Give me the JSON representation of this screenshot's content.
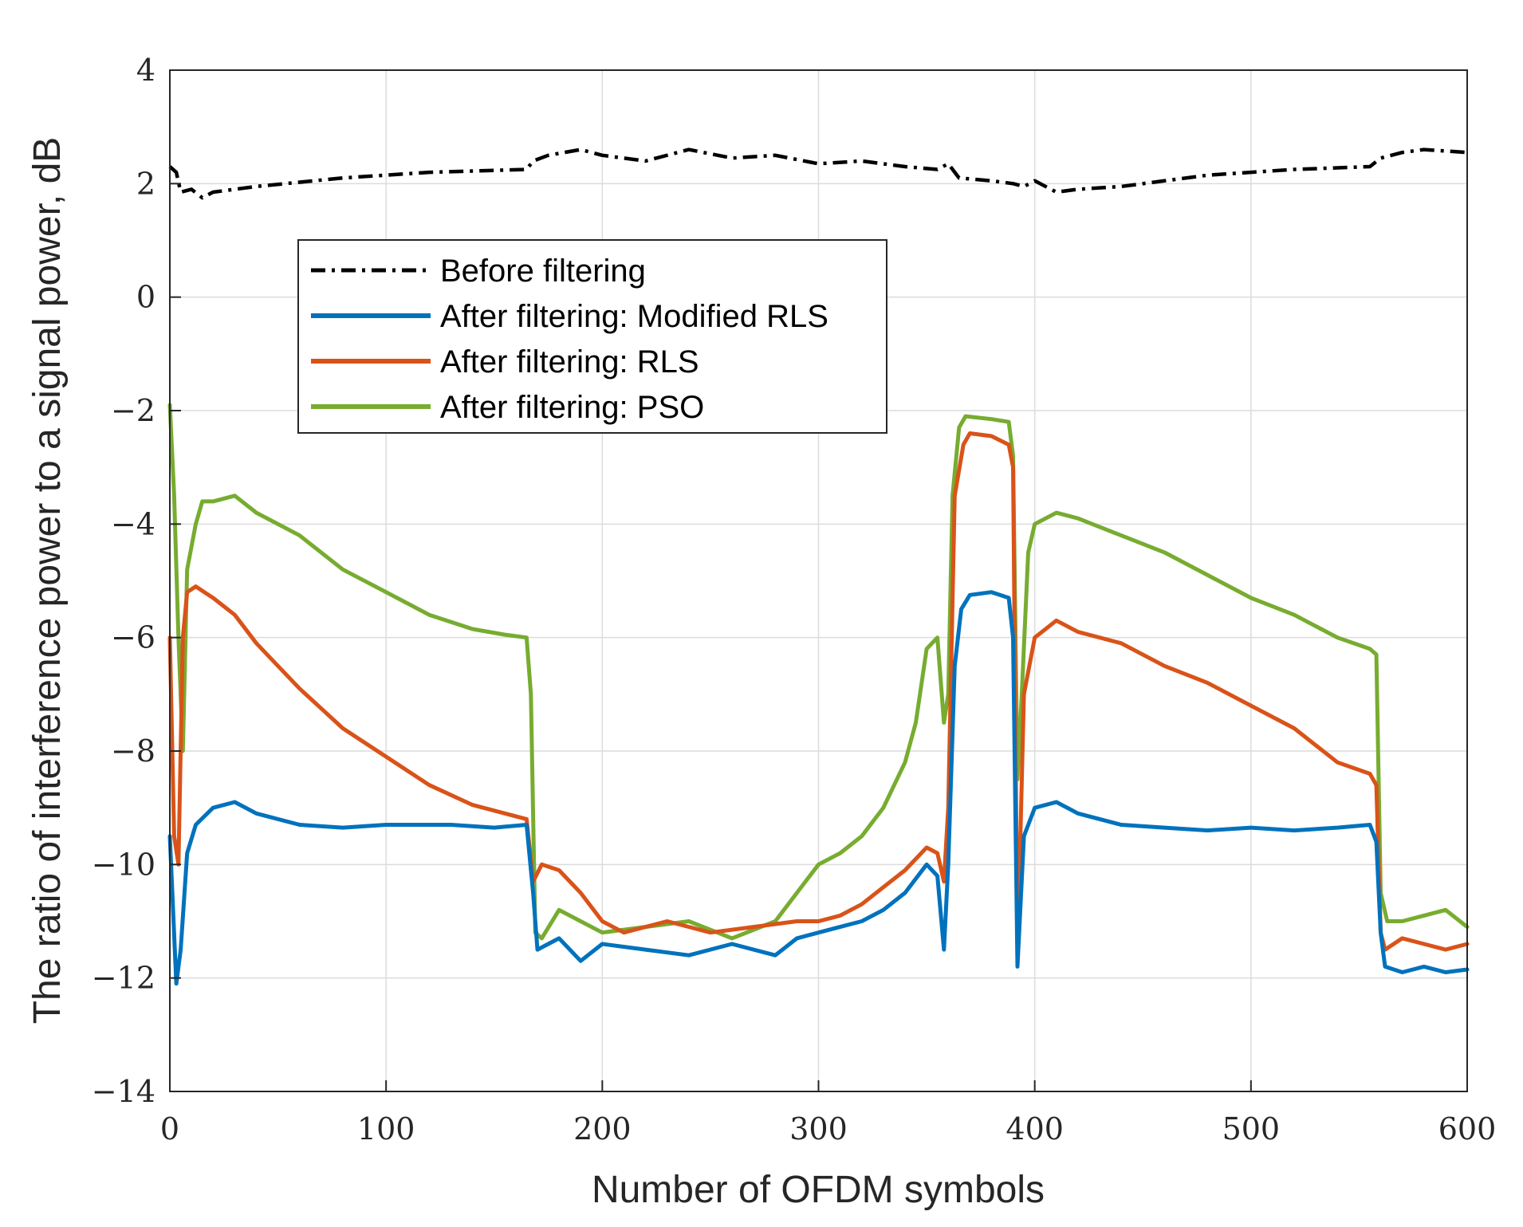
{
  "chart_data": {
    "type": "line",
    "title": "",
    "xlabel": "Number of OFDM symbols",
    "ylabel": "The ratio of interference power to a signal power, dB",
    "xlim": [
      0,
      600
    ],
    "ylim": [
      -14,
      4
    ],
    "xticks": [
      0,
      100,
      200,
      300,
      400,
      500,
      600
    ],
    "xtick_labels": [
      "0",
      "100",
      "200",
      "300",
      "400",
      "500",
      "600"
    ],
    "yticks": [
      -14,
      -12,
      -10,
      -8,
      -6,
      -4,
      -2,
      0,
      2,
      4
    ],
    "ytick_labels": [
      "−14",
      "−12",
      "−10",
      "−8",
      "−6",
      "−4",
      "−2",
      "0",
      "2",
      "4"
    ],
    "grid": true,
    "legend_position": "upper-left",
    "series": [
      {
        "name": "Before filtering",
        "color": "#000000",
        "style": "dash-dot",
        "points": [
          [
            0,
            2.3
          ],
          [
            3,
            2.2
          ],
          [
            5,
            1.85
          ],
          [
            10,
            1.9
          ],
          [
            15,
            1.75
          ],
          [
            20,
            1.85
          ],
          [
            40,
            1.95
          ],
          [
            80,
            2.1
          ],
          [
            120,
            2.2
          ],
          [
            165,
            2.25
          ],
          [
            168,
            2.4
          ],
          [
            175,
            2.5
          ],
          [
            190,
            2.6
          ],
          [
            200,
            2.5
          ],
          [
            220,
            2.4
          ],
          [
            240,
            2.6
          ],
          [
            260,
            2.45
          ],
          [
            280,
            2.5
          ],
          [
            300,
            2.35
          ],
          [
            320,
            2.4
          ],
          [
            340,
            2.3
          ],
          [
            355,
            2.25
          ],
          [
            360,
            2.35
          ],
          [
            365,
            2.1
          ],
          [
            380,
            2.05
          ],
          [
            390,
            2.0
          ],
          [
            395,
            1.95
          ],
          [
            400,
            2.05
          ],
          [
            410,
            1.85
          ],
          [
            420,
            1.9
          ],
          [
            440,
            1.95
          ],
          [
            480,
            2.15
          ],
          [
            520,
            2.25
          ],
          [
            555,
            2.3
          ],
          [
            560,
            2.45
          ],
          [
            570,
            2.55
          ],
          [
            580,
            2.6
          ],
          [
            600,
            2.55
          ]
        ]
      },
      {
        "name": "After filtering: Modified RLS",
        "color": "#0072BD",
        "style": "solid",
        "points": [
          [
            0,
            -9.5
          ],
          [
            3,
            -12.1
          ],
          [
            5,
            -11.5
          ],
          [
            8,
            -9.8
          ],
          [
            12,
            -9.3
          ],
          [
            20,
            -9.0
          ],
          [
            30,
            -8.9
          ],
          [
            40,
            -9.1
          ],
          [
            60,
            -9.3
          ],
          [
            80,
            -9.35
          ],
          [
            100,
            -9.3
          ],
          [
            130,
            -9.3
          ],
          [
            150,
            -9.35
          ],
          [
            165,
            -9.3
          ],
          [
            168,
            -10.5
          ],
          [
            170,
            -11.5
          ],
          [
            180,
            -11.3
          ],
          [
            190,
            -11.7
          ],
          [
            200,
            -11.4
          ],
          [
            220,
            -11.5
          ],
          [
            240,
            -11.6
          ],
          [
            260,
            -11.4
          ],
          [
            280,
            -11.6
          ],
          [
            290,
            -11.3
          ],
          [
            300,
            -11.2
          ],
          [
            310,
            -11.1
          ],
          [
            320,
            -11.0
          ],
          [
            330,
            -10.8
          ],
          [
            340,
            -10.5
          ],
          [
            350,
            -10.0
          ],
          [
            355,
            -10.2
          ],
          [
            358,
            -11.5
          ],
          [
            360,
            -10.0
          ],
          [
            363,
            -6.5
          ],
          [
            366,
            -5.5
          ],
          [
            370,
            -5.25
          ],
          [
            380,
            -5.2
          ],
          [
            388,
            -5.3
          ],
          [
            390,
            -6.0
          ],
          [
            392,
            -11.8
          ],
          [
            395,
            -9.5
          ],
          [
            400,
            -9.0
          ],
          [
            410,
            -8.9
          ],
          [
            420,
            -9.1
          ],
          [
            440,
            -9.3
          ],
          [
            460,
            -9.35
          ],
          [
            480,
            -9.4
          ],
          [
            500,
            -9.35
          ],
          [
            520,
            -9.4
          ],
          [
            540,
            -9.35
          ],
          [
            555,
            -9.3
          ],
          [
            558,
            -9.6
          ],
          [
            560,
            -11.2
          ],
          [
            562,
            -11.8
          ],
          [
            570,
            -11.9
          ],
          [
            580,
            -11.8
          ],
          [
            590,
            -11.9
          ],
          [
            600,
            -11.85
          ]
        ]
      },
      {
        "name": "After filtering: RLS",
        "color": "#D95319",
        "style": "solid",
        "points": [
          [
            0,
            -6.0
          ],
          [
            2,
            -9.5
          ],
          [
            4,
            -10.0
          ],
          [
            6,
            -6.0
          ],
          [
            8,
            -5.2
          ],
          [
            12,
            -5.1
          ],
          [
            20,
            -5.3
          ],
          [
            30,
            -5.6
          ],
          [
            40,
            -6.1
          ],
          [
            50,
            -6.5
          ],
          [
            60,
            -6.9
          ],
          [
            80,
            -7.6
          ],
          [
            100,
            -8.1
          ],
          [
            120,
            -8.6
          ],
          [
            140,
            -8.95
          ],
          [
            155,
            -9.1
          ],
          [
            165,
            -9.2
          ],
          [
            168,
            -10.3
          ],
          [
            172,
            -10.0
          ],
          [
            180,
            -10.1
          ],
          [
            190,
            -10.5
          ],
          [
            200,
            -11.0
          ],
          [
            210,
            -11.2
          ],
          [
            230,
            -11.0
          ],
          [
            250,
            -11.2
          ],
          [
            270,
            -11.1
          ],
          [
            290,
            -11.0
          ],
          [
            300,
            -11.0
          ],
          [
            310,
            -10.9
          ],
          [
            320,
            -10.7
          ],
          [
            330,
            -10.4
          ],
          [
            340,
            -10.1
          ],
          [
            350,
            -9.7
          ],
          [
            355,
            -9.8
          ],
          [
            358,
            -10.3
          ],
          [
            360,
            -9.0
          ],
          [
            363,
            -3.5
          ],
          [
            367,
            -2.6
          ],
          [
            370,
            -2.4
          ],
          [
            380,
            -2.45
          ],
          [
            388,
            -2.6
          ],
          [
            390,
            -3.0
          ],
          [
            392,
            -11.6
          ],
          [
            395,
            -7.0
          ],
          [
            400,
            -6.0
          ],
          [
            410,
            -5.7
          ],
          [
            420,
            -5.9
          ],
          [
            440,
            -6.1
          ],
          [
            460,
            -6.5
          ],
          [
            480,
            -6.8
          ],
          [
            500,
            -7.2
          ],
          [
            520,
            -7.6
          ],
          [
            540,
            -8.2
          ],
          [
            555,
            -8.4
          ],
          [
            558,
            -8.6
          ],
          [
            560,
            -11.2
          ],
          [
            562,
            -11.5
          ],
          [
            570,
            -11.3
          ],
          [
            580,
            -11.4
          ],
          [
            590,
            -11.5
          ],
          [
            600,
            -11.4
          ]
        ]
      },
      {
        "name": "After filtering: PSO",
        "color": "#77AC30",
        "style": "solid",
        "points": [
          [
            0,
            -1.9
          ],
          [
            2,
            -3.5
          ],
          [
            4,
            -6.0
          ],
          [
            6,
            -8.0
          ],
          [
            8,
            -4.8
          ],
          [
            12,
            -4.0
          ],
          [
            15,
            -3.6
          ],
          [
            20,
            -3.6
          ],
          [
            30,
            -3.5
          ],
          [
            40,
            -3.8
          ],
          [
            50,
            -4.0
          ],
          [
            60,
            -4.2
          ],
          [
            80,
            -4.8
          ],
          [
            100,
            -5.2
          ],
          [
            120,
            -5.6
          ],
          [
            140,
            -5.85
          ],
          [
            155,
            -5.95
          ],
          [
            165,
            -6.0
          ],
          [
            167,
            -7.0
          ],
          [
            169,
            -11.2
          ],
          [
            172,
            -11.3
          ],
          [
            180,
            -10.8
          ],
          [
            190,
            -11.0
          ],
          [
            200,
            -11.2
          ],
          [
            220,
            -11.1
          ],
          [
            240,
            -11.0
          ],
          [
            260,
            -11.3
          ],
          [
            280,
            -11.0
          ],
          [
            290,
            -10.5
          ],
          [
            300,
            -10.0
          ],
          [
            310,
            -9.8
          ],
          [
            320,
            -9.5
          ],
          [
            330,
            -9.0
          ],
          [
            340,
            -8.2
          ],
          [
            345,
            -7.5
          ],
          [
            350,
            -6.2
          ],
          [
            355,
            -6.0
          ],
          [
            358,
            -7.5
          ],
          [
            360,
            -7.0
          ],
          [
            362,
            -3.5
          ],
          [
            365,
            -2.3
          ],
          [
            368,
            -2.1
          ],
          [
            380,
            -2.15
          ],
          [
            388,
            -2.2
          ],
          [
            390,
            -2.8
          ],
          [
            392,
            -8.5
          ],
          [
            394,
            -7.0
          ],
          [
            397,
            -4.5
          ],
          [
            400,
            -4.0
          ],
          [
            410,
            -3.8
          ],
          [
            420,
            -3.9
          ],
          [
            440,
            -4.2
          ],
          [
            460,
            -4.5
          ],
          [
            480,
            -4.9
          ],
          [
            500,
            -5.3
          ],
          [
            520,
            -5.6
          ],
          [
            540,
            -6.0
          ],
          [
            555,
            -6.2
          ],
          [
            558,
            -6.3
          ],
          [
            560,
            -10.5
          ],
          [
            563,
            -11.0
          ],
          [
            570,
            -11.0
          ],
          [
            580,
            -10.9
          ],
          [
            590,
            -10.8
          ],
          [
            600,
            -11.1
          ]
        ]
      }
    ]
  }
}
